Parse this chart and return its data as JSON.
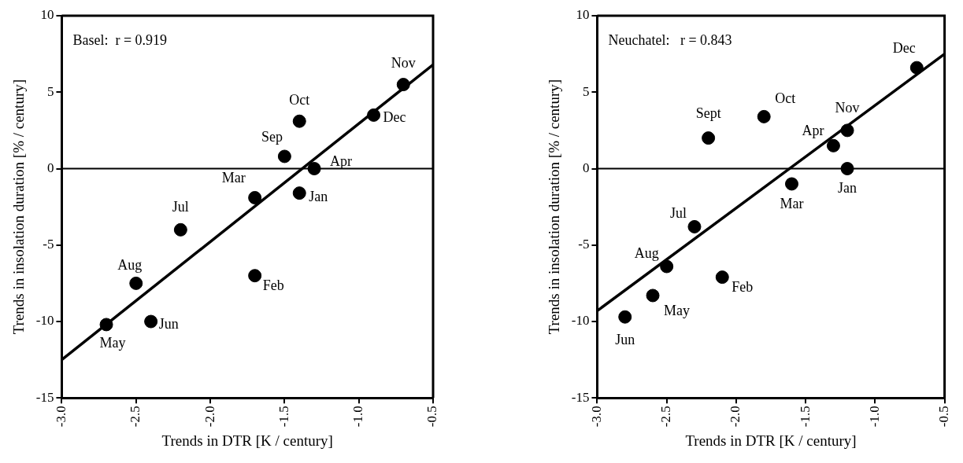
{
  "chart_data": [
    {
      "type": "scatter",
      "xlabel": "Trends in DTR [K / century]",
      "ylabel": "Trends in insolation duration [% / century]",
      "xlim": [
        -3,
        -0.5
      ],
      "ylim": [
        -15,
        10
      ],
      "xticks": [
        {
          "value": -3,
          "label": "-3.0"
        },
        {
          "value": -2.5,
          "label": "-2.5"
        },
        {
          "value": -2,
          "label": "-2.0"
        },
        {
          "value": -1.5,
          "label": "-1.5"
        },
        {
          "value": -1,
          "label": "-1.0"
        },
        {
          "value": -0.5,
          "label": "-0.5"
        }
      ],
      "yticks": [
        -15,
        -10,
        -5,
        0,
        5,
        10
      ],
      "grid": false,
      "legend": false,
      "marker": "circle",
      "ref_lines": [
        {
          "axis": "y",
          "value": 0
        }
      ],
      "series": [
        {
          "type": "scatter",
          "color": "#000000",
          "x": [
            -0.7,
            -1.4,
            -0.9,
            -1.5,
            -1.3,
            -1.7,
            -1.4,
            -2.2,
            -2.5,
            -1.7,
            -2.7,
            -2.4
          ],
          "values": [
            5.5,
            3.1,
            3.5,
            0.8,
            0,
            -1.9,
            -1.6,
            -4.0,
            -7.5,
            -7.0,
            -10.2,
            -10.0
          ]
        },
        {
          "type": "line",
          "color": "#000000",
          "x": [
            -3,
            -0.5
          ],
          "values": [
            -12.5,
            6.8
          ],
          "marker": "none"
        }
      ],
      "annotations": [
        "Basel:  r = 0.919",
        {
          "text": "Nov",
          "x": -0.7,
          "y": 5.5
        },
        {
          "text": "Oct",
          "x": -1.4,
          "y": 3.1
        },
        {
          "text": "Dec",
          "x": -0.9,
          "y": 3.5
        },
        {
          "text": "Sep",
          "x": -1.5,
          "y": 0.8
        },
        {
          "text": "Apr",
          "x": -1.3,
          "y": 0
        },
        {
          "text": "Mar",
          "x": -1.7,
          "y": -1.9
        },
        {
          "text": "Jan",
          "x": -1.4,
          "y": -1.6
        },
        {
          "text": "Jul",
          "x": -2.2,
          "y": -4.0
        },
        {
          "text": "Aug",
          "x": -2.5,
          "y": -7.5
        },
        {
          "text": "Feb",
          "x": -1.7,
          "y": -7.0
        },
        {
          "text": "May",
          "x": -2.7,
          "y": -10.2
        },
        {
          "text": "Jun",
          "x": -2.4,
          "y": -10.0
        }
      ]
    },
    {
      "type": "scatter",
      "xlabel": "Trends in DTR [K / century]",
      "ylabel": "Trends in insolation duration [% / century]",
      "xlim": [
        -3,
        -0.5
      ],
      "ylim": [
        -15,
        10
      ],
      "xticks": [
        {
          "value": -3,
          "label": "-3.0"
        },
        {
          "value": -2.5,
          "label": "-2.5"
        },
        {
          "value": -2,
          "label": "-2.0"
        },
        {
          "value": -1.5,
          "label": "-1.5"
        },
        {
          "value": -1,
          "label": "-1.0"
        },
        {
          "value": -0.5,
          "label": "-0.5"
        }
      ],
      "yticks": [
        -15,
        -10,
        -5,
        0,
        5,
        10
      ],
      "grid": false,
      "legend": false,
      "marker": "circle",
      "ref_lines": [
        {
          "axis": "y",
          "value": 0
        }
      ],
      "series": [
        {
          "type": "scatter",
          "color": "#000000",
          "x": [
            -0.7,
            -1.8,
            -2.2,
            -1.2,
            -1.3,
            -1.2,
            -1.6,
            -2.3,
            -2.5,
            -2.1,
            -2.6,
            -2.8
          ],
          "values": [
            6.6,
            3.4,
            2.0,
            2.5,
            1.5,
            0,
            -1.0,
            -3.8,
            -6.4,
            -7.1,
            -8.3,
            -9.7
          ]
        },
        {
          "type": "line",
          "color": "#000000",
          "x": [
            -3,
            -0.5
          ],
          "values": [
            -9.3,
            7.5
          ],
          "marker": "none"
        }
      ],
      "annotations": [
        "Neuchatel:   r = 0.843",
        {
          "text": "Dec",
          "x": -0.7,
          "y": 6.6
        },
        {
          "text": "Oct",
          "x": -1.8,
          "y": 3.4
        },
        {
          "text": "Sept",
          "x": -2.2,
          "y": 2.0
        },
        {
          "text": "Nov",
          "x": -1.2,
          "y": 2.5
        },
        {
          "text": "Apr",
          "x": -1.3,
          "y": 1.5
        },
        {
          "text": "Jan",
          "x": -1.2,
          "y": 0
        },
        {
          "text": "Mar",
          "x": -1.6,
          "y": -1.0
        },
        {
          "text": "Jul",
          "x": -2.3,
          "y": -3.8
        },
        {
          "text": "Aug",
          "x": -2.5,
          "y": -6.4
        },
        {
          "text": "Feb",
          "x": -2.1,
          "y": -7.1
        },
        {
          "text": "May",
          "x": -2.6,
          "y": -8.3
        },
        {
          "text": "Jun",
          "x": -2.8,
          "y": -9.7
        }
      ]
    }
  ]
}
